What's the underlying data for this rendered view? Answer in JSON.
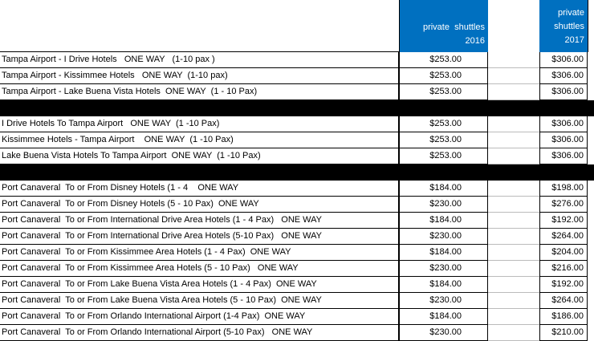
{
  "header": {
    "col2016": [
      "private  shuttles",
      "2016"
    ],
    "col2017": [
      "private",
      "shuttles",
      "2017"
    ]
  },
  "groups": [
    {
      "rows": [
        [
          "Tampa Airport - I Drive Hotels   ONE WAY   (1-10 pax )",
          "$253.00",
          "$306.00"
        ],
        [
          "Tampa Airport - Kissimmee Hotels   ONE WAY  (1-10 pax)",
          "$253.00",
          "$306.00"
        ],
        [
          "Tampa Airport - Lake Buena Vista Hotels  ONE WAY  (1 - 10 Pax)",
          "$253.00",
          "$306.00"
        ]
      ]
    },
    {
      "rows": [
        [
          "I Drive Hotels To Tampa Airport   ONE WAY  (1 -10 Pax)",
          "$253.00",
          "$306.00"
        ],
        [
          "Kissimmee Hotels - Tampa Airport    ONE WAY  (1 -10 Pax)",
          "$253.00",
          "$306.00"
        ],
        [
          "Lake Buena Vista Hotels To Tampa Airport  ONE WAY  (1 -10 Pax)",
          "$253.00",
          "$306.00"
        ]
      ]
    },
    {
      "rows": [
        [
          "Port Canaveral  To or From Disney Hotels (1 - 4    ONE WAY",
          "$184.00",
          "$198.00"
        ],
        [
          "Port Canaveral  To or From Disney Hotels (5 - 10 Pax)  ONE WAY",
          "$230.00",
          "$276.00"
        ],
        [
          "Port Canaveral  To or From International Drive Area Hotels (1 - 4 Pax)   ONE WAY",
          "$184.00",
          "$192.00"
        ],
        [
          "Port Canaveral  To or From International Drive Area Hotels (5-10 Pax)   ONE WAY",
          "$230.00",
          "$264.00"
        ],
        [
          "Port Canaveral  To or From Kissimmee Area Hotels (1 - 4 Pax)  ONE WAY",
          "$184.00",
          "$204.00"
        ],
        [
          "Port Canaveral  To or From Kissimmee Area Hotels (5 - 10 Pax)   ONE WAY",
          "$230.00",
          "$216.00"
        ],
        [
          "Port Canaveral  To or From Lake Buena Vista Area Hotels (1 - 4 Pax)  ONE WAY",
          "$184.00",
          "$192.00"
        ],
        [
          "Port Canaveral  To or From Lake Buena Vista Area Hotels (5 - 10 Pax)  ONE WAY",
          "$230.00",
          "$264.00"
        ],
        [
          "Port Canaveral  To or From Orlando International Airport (1-4 Pax)  ONE WAY",
          "$184.00",
          "$186.00"
        ],
        [
          "Port Canaveral  To or From Orlando International Airport (5-10 Pax)   ONE WAY",
          "$230.00",
          "$210.00"
        ]
      ]
    }
  ]
}
